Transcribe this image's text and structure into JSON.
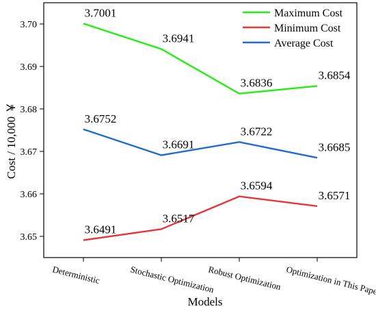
{
  "chart_data": {
    "type": "line",
    "categories": [
      "Deterministic",
      "Stochastic Optimization",
      "Robust Optimization",
      "Optimization in This Paper"
    ],
    "xlabel": "Models",
    "ylabel": "Cost / 10,000 ￥",
    "ylim": [
      3.645,
      3.705
    ],
    "yticks": [
      3.65,
      3.66,
      3.67,
      3.68,
      3.69,
      3.7
    ],
    "ytick_labels": [
      "3.65",
      "3.66",
      "3.67",
      "3.68",
      "3.69",
      "3.70"
    ],
    "grid": false,
    "legend_position": "top-right",
    "series": [
      {
        "name": "Maximum Cost",
        "color": "#22ee11",
        "values": [
          3.7001,
          3.6941,
          3.6836,
          3.6854
        ],
        "labels": [
          "3.7001",
          "3.6941",
          "3.6836",
          "3.6854"
        ]
      },
      {
        "name": "Minimum Cost",
        "color": "#e8353b",
        "values": [
          3.6491,
          3.6517,
          3.6594,
          3.6571
        ],
        "labels": [
          "3.6491",
          "3.6517",
          "3.6594",
          "3.6571"
        ]
      },
      {
        "name": "Average Cost",
        "color": "#1f6bd1",
        "values": [
          3.6752,
          3.6691,
          3.6722,
          3.6685
        ],
        "labels": [
          "3.6752",
          "3.6691",
          "3.6722",
          "3.6685"
        ]
      }
    ]
  }
}
